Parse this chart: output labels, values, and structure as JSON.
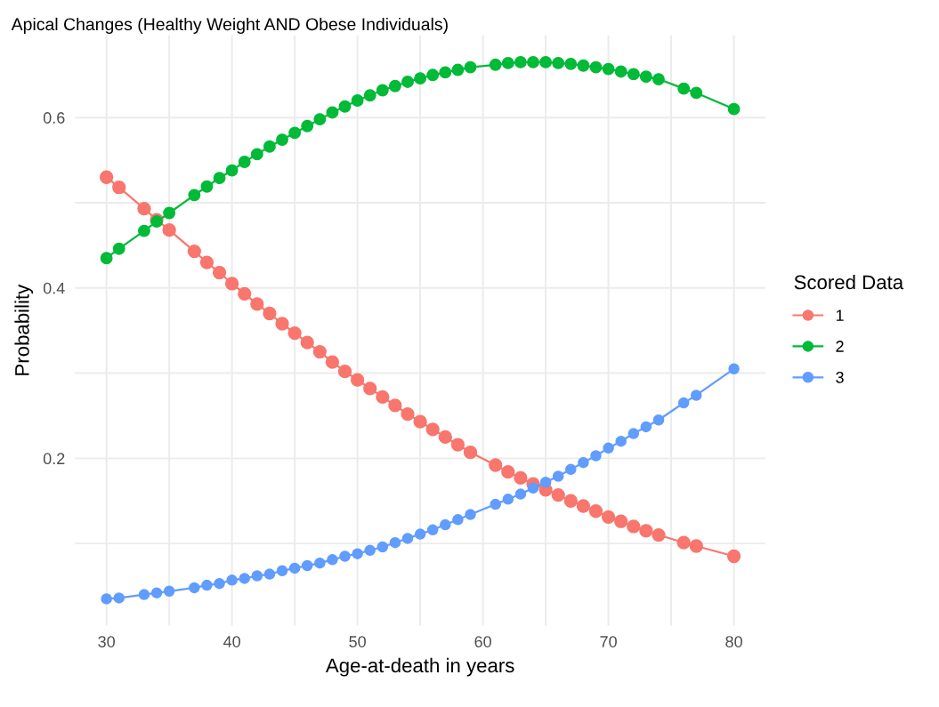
{
  "chart_data": {
    "type": "line",
    "title": "Apical Changes (Healthy Weight AND Obese Individuals)",
    "xlabel": "Age-at-death in years",
    "ylabel": "Probability",
    "legend_title": "Scored Data",
    "legend": "right",
    "grid": true,
    "marker": "circle",
    "line_style": "solid",
    "x": [
      30,
      31,
      33,
      34,
      35,
      37,
      38,
      39,
      40,
      41,
      42,
      43,
      44,
      45,
      46,
      47,
      48,
      49,
      50,
      51,
      52,
      53,
      54,
      55,
      56,
      57,
      58,
      59,
      61,
      62,
      63,
      64,
      65,
      66,
      67,
      68,
      69,
      70,
      71,
      72,
      73,
      74,
      76,
      77,
      80
    ],
    "xlim": [
      27.5,
      82.5
    ],
    "xticks": [
      30,
      {
        "value": 35,
        "label": null
      },
      40,
      {
        "value": 45,
        "label": null
      },
      50,
      {
        "value": 55,
        "label": null
      },
      60,
      {
        "value": 65,
        "label": null
      },
      70,
      {
        "value": 75,
        "label": null
      },
      80
    ],
    "ylim": [
      0.0035,
      0.6965
    ],
    "yticks": [
      {
        "value": 0.1,
        "label": null
      },
      {
        "value": 0.2,
        "label": "0.2"
      },
      {
        "value": 0.3,
        "label": null
      },
      {
        "value": 0.4,
        "label": "0.4"
      },
      {
        "value": 0.5,
        "label": null
      },
      {
        "value": 0.6,
        "label": "0.6"
      }
    ],
    "series": [
      {
        "name": "1",
        "color": "#f8766d",
        "values": [
          0.53,
          0.518,
          0.493,
          0.48,
          0.468,
          0.443,
          0.43,
          0.418,
          0.405,
          0.393,
          0.381,
          0.37,
          0.358,
          0.347,
          0.336,
          0.325,
          0.313,
          0.302,
          0.292,
          0.282,
          0.272,
          0.262,
          0.252,
          0.243,
          0.234,
          0.225,
          0.216,
          0.207,
          0.192,
          0.184,
          0.177,
          0.17,
          0.163,
          0.157,
          0.15,
          0.144,
          0.138,
          0.131,
          0.126,
          0.12,
          0.115,
          0.11,
          0.101,
          0.097,
          0.085
        ]
      },
      {
        "name": "2",
        "color": "#00ba38",
        "values": [
          0.435,
          0.446,
          0.467,
          0.478,
          0.488,
          0.509,
          0.519,
          0.529,
          0.538,
          0.548,
          0.557,
          0.566,
          0.574,
          0.582,
          0.59,
          0.598,
          0.606,
          0.613,
          0.62,
          0.626,
          0.632,
          0.637,
          0.642,
          0.646,
          0.65,
          0.653,
          0.656,
          0.659,
          0.662,
          0.664,
          0.665,
          0.665,
          0.665,
          0.664,
          0.663,
          0.661,
          0.659,
          0.657,
          0.654,
          0.651,
          0.648,
          0.645,
          0.634,
          0.629,
          0.61
        ]
      },
      {
        "name": "3",
        "color": "#619cff",
        "values": [
          0.035,
          0.036,
          0.04,
          0.042,
          0.044,
          0.048,
          0.051,
          0.053,
          0.057,
          0.059,
          0.062,
          0.064,
          0.068,
          0.071,
          0.074,
          0.077,
          0.081,
          0.085,
          0.088,
          0.092,
          0.096,
          0.101,
          0.106,
          0.111,
          0.116,
          0.122,
          0.128,
          0.134,
          0.146,
          0.152,
          0.158,
          0.165,
          0.172,
          0.179,
          0.187,
          0.195,
          0.203,
          0.212,
          0.22,
          0.229,
          0.237,
          0.245,
          0.265,
          0.274,
          0.305
        ]
      }
    ]
  }
}
